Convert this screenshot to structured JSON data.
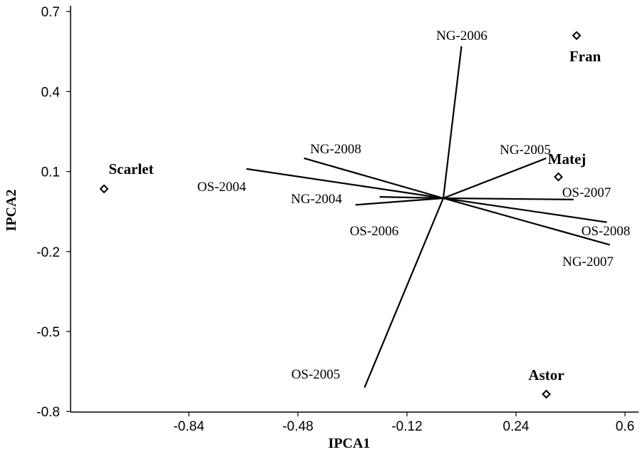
{
  "chart_data": {
    "type": "scatter",
    "subtype": "biplot",
    "xlabel": "IPCA1",
    "ylabel": "IPCA2",
    "xlim": [
      -1.13,
      0.64
    ],
    "ylim": [
      -0.8,
      0.74
    ],
    "xticks": [
      -0.84,
      -0.48,
      -0.12,
      0.24,
      0.6
    ],
    "xtick_labels": [
      "-0.84",
      "-0.48",
      "-0.12",
      "0.24",
      "0.6"
    ],
    "yticks": [
      0.7,
      0.4,
      0.1,
      -0.2,
      -0.5,
      -0.8
    ],
    "ytick_labels": [
      "0.7",
      "0.4",
      "0.1",
      "-0.2",
      "-0.5",
      "-0.8"
    ],
    "vector_origin": [
      0.0,
      0.0
    ],
    "environments": [
      {
        "label": "NG-2006",
        "x": 0.06,
        "y": 0.57
      },
      {
        "label": "NG-2005",
        "x": 0.34,
        "y": 0.15
      },
      {
        "label": "OS-2007",
        "x": 0.43,
        "y": -0.005
      },
      {
        "label": "OS-2008",
        "x": 0.54,
        "y": -0.09
      },
      {
        "label": "NG-2007",
        "x": 0.55,
        "y": -0.175
      },
      {
        "label": "OS-2005",
        "x": -0.26,
        "y": -0.71
      },
      {
        "label": "OS-2006",
        "x": -0.29,
        "y": -0.025
      },
      {
        "label": "NG-2004",
        "x": -0.21,
        "y": 0.005
      },
      {
        "label": "NG-2008",
        "x": -0.46,
        "y": 0.15
      },
      {
        "label": "OS-2004",
        "x": -0.65,
        "y": 0.11
      }
    ],
    "genotypes": [
      {
        "label": "Scarlet",
        "x": -1.12,
        "y": 0.035
      },
      {
        "label": "Fran",
        "x": 0.44,
        "y": 0.61
      },
      {
        "label": "Matej",
        "x": 0.38,
        "y": 0.08
      },
      {
        "label": "Astor",
        "x": 0.34,
        "y": -0.735
      }
    ],
    "grid": false,
    "legend": "none"
  }
}
